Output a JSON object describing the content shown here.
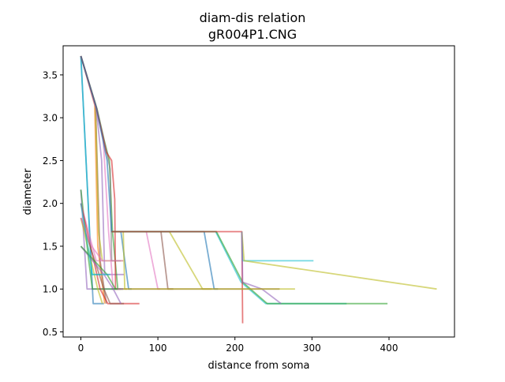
{
  "chart_data": {
    "type": "line",
    "title": "diam-dis relation",
    "subtitle": "gR004P1.CNG",
    "xlabel": "distance from soma",
    "ylabel": "diameter",
    "xlim": [
      -23,
      485
    ],
    "ylim": [
      0.44,
      3.84
    ],
    "xticks": [
      0,
      100,
      200,
      300,
      400
    ],
    "yticks": [
      0.5,
      1.0,
      1.5,
      2.0,
      2.5,
      3.0,
      3.5
    ],
    "ytick_labels": [
      "0.5",
      "1.0",
      "1.5",
      "2.0",
      "2.5",
      "3.0",
      "3.5"
    ],
    "grid": false,
    "series": [
      {
        "color": "#1f77b4",
        "points": [
          [
            0,
            3.72
          ],
          [
            16,
            0.83
          ],
          [
            30,
            0.83
          ]
        ]
      },
      {
        "color": "#17becf",
        "points": [
          [
            0,
            3.72
          ],
          [
            14,
            1.17
          ],
          [
            27,
            1.17
          ]
        ]
      },
      {
        "color": "#ff7f0e",
        "points": [
          [
            0,
            3.72
          ],
          [
            18,
            3.15
          ],
          [
            22,
            1.5
          ],
          [
            31,
            0.83
          ]
        ]
      },
      {
        "color": "#8c564b",
        "points": [
          [
            0,
            3.72
          ],
          [
            19,
            3.15
          ],
          [
            25,
            1.33
          ],
          [
            33,
            0.83
          ]
        ]
      },
      {
        "color": "#bcbd22",
        "points": [
          [
            0,
            3.72
          ],
          [
            19,
            3.15
          ],
          [
            23,
            1.67
          ],
          [
            28,
            1.33
          ],
          [
            55,
            1.33
          ]
        ]
      },
      {
        "color": "#9467bd",
        "points": [
          [
            0,
            3.72
          ],
          [
            20,
            3.1
          ],
          [
            27,
            2.5
          ],
          [
            31,
            1.17
          ],
          [
            56,
            1.17
          ]
        ]
      },
      {
        "color": "#e377c2",
        "points": [
          [
            0,
            3.72
          ],
          [
            20,
            3.1
          ],
          [
            29,
            2.75
          ],
          [
            36,
            1.67
          ],
          [
            42,
            1.0
          ],
          [
            48,
            1.0
          ]
        ]
      },
      {
        "color": "#2ca02c",
        "points": [
          [
            0,
            3.72
          ],
          [
            21,
            3.1
          ],
          [
            30,
            2.75
          ],
          [
            37,
            2.5
          ],
          [
            41,
            1.67
          ],
          [
            48,
            1.0
          ],
          [
            55,
            1.0
          ]
        ]
      },
      {
        "color": "#7f7f7f",
        "points": [
          [
            0,
            3.72
          ],
          [
            21,
            3.1
          ],
          [
            31,
            2.7
          ],
          [
            38,
            2.4
          ],
          [
            40,
            1.33
          ],
          [
            52,
            1.33
          ]
        ]
      },
      {
        "color": "#d62728",
        "points": [
          [
            0,
            3.72
          ],
          [
            20,
            3.12
          ],
          [
            33,
            2.6
          ],
          [
            40,
            2.5
          ],
          [
            44,
            2.05
          ],
          [
            45,
            1.0
          ],
          [
            52,
            1.0
          ]
        ]
      },
      {
        "color": "#1f77b4",
        "points": [
          [
            0,
            3.72
          ],
          [
            20,
            3.12
          ],
          [
            34,
            2.5
          ],
          [
            40,
            1.67
          ],
          [
            52,
            1.67
          ],
          [
            62,
            1.0
          ],
          [
            66,
            1.0
          ]
        ]
      },
      {
        "color": "#bcbd22",
        "points": [
          [
            40,
            1.67
          ],
          [
            55,
            1.67
          ],
          [
            57,
            1.0
          ],
          [
            60,
            1.0
          ]
        ]
      },
      {
        "color": "#e377c2",
        "points": [
          [
            40,
            1.67
          ],
          [
            85,
            1.67
          ],
          [
            100,
            1.0
          ],
          [
            103,
            1.0
          ]
        ]
      },
      {
        "color": "#8c564b",
        "points": [
          [
            40,
            1.67
          ],
          [
            104,
            1.67
          ],
          [
            113,
            1.0
          ],
          [
            120,
            1.0
          ]
        ]
      },
      {
        "color": "#bcbd22",
        "points": [
          [
            40,
            1.67
          ],
          [
            115,
            1.67
          ],
          [
            158,
            1.0
          ],
          [
            170,
            1.0
          ]
        ]
      },
      {
        "color": "#1f77b4",
        "points": [
          [
            40,
            1.67
          ],
          [
            160,
            1.67
          ],
          [
            173,
            1.0
          ],
          [
            178,
            1.0
          ]
        ]
      },
      {
        "color": "#17becf",
        "points": [
          [
            40,
            1.67
          ],
          [
            175,
            1.67
          ],
          [
            208,
            1.08
          ],
          [
            240,
            0.83
          ],
          [
            345,
            0.83
          ]
        ]
      },
      {
        "color": "#2ca02c",
        "points": [
          [
            40,
            1.67
          ],
          [
            176,
            1.67
          ],
          [
            210,
            1.08
          ],
          [
            242,
            0.83
          ],
          [
            398,
            0.83
          ]
        ]
      },
      {
        "color": "#d62728",
        "points": [
          [
            40,
            1.67
          ],
          [
            209,
            1.67
          ],
          [
            210,
            0.6
          ]
        ]
      },
      {
        "color": "#17becf",
        "points": [
          [
            209,
            1.67
          ],
          [
            210,
            1.33
          ],
          [
            302,
            1.33
          ]
        ]
      },
      {
        "color": "#bcbd22",
        "points": [
          [
            209,
            1.67
          ],
          [
            212,
            1.33
          ],
          [
            462,
            1.0
          ]
        ]
      },
      {
        "color": "#9467bd",
        "points": [
          [
            209,
            1.67
          ],
          [
            210,
            1.08
          ],
          [
            235,
            1.0
          ],
          [
            260,
            0.83
          ]
        ]
      },
      {
        "color": "#8c564b",
        "points": [
          [
            40,
            1.0
          ],
          [
            258,
            1.0
          ]
        ]
      },
      {
        "color": "#bcbd22",
        "points": [
          [
            40,
            1.0
          ],
          [
            278,
            1.0
          ]
        ]
      },
      {
        "color": "#9467bd",
        "points": [
          [
            0,
            2.16
          ],
          [
            8,
            1.0
          ],
          [
            55,
            1.0
          ]
        ]
      },
      {
        "color": "#2ca02c",
        "points": [
          [
            0,
            2.16
          ],
          [
            10,
            1.35
          ],
          [
            15,
            1.0
          ],
          [
            48,
            1.0
          ]
        ]
      },
      {
        "color": "#e377c2",
        "points": [
          [
            0,
            2.0
          ],
          [
            20,
            1.33
          ],
          [
            55,
            1.33
          ]
        ]
      },
      {
        "color": "#d62728",
        "points": [
          [
            0,
            2.0
          ],
          [
            25,
            1.0
          ],
          [
            35,
            0.83
          ],
          [
            76,
            0.83
          ]
        ]
      },
      {
        "color": "#8c564b",
        "points": [
          [
            0,
            1.83
          ],
          [
            30,
            1.0
          ],
          [
            38,
            0.83
          ],
          [
            56,
            0.83
          ]
        ]
      },
      {
        "color": "#bcbd22",
        "points": [
          [
            0,
            1.83
          ],
          [
            22,
            1.0
          ],
          [
            28,
            0.83
          ]
        ]
      },
      {
        "color": "#9467bd",
        "points": [
          [
            0,
            1.5
          ],
          [
            30,
            1.17
          ],
          [
            42,
            1.0
          ],
          [
            52,
            0.83
          ]
        ]
      },
      {
        "color": "#2ca02c",
        "points": [
          [
            0,
            1.5
          ],
          [
            34,
            1.17
          ],
          [
            45,
            1.0
          ]
        ]
      },
      {
        "color": "#e377c2",
        "points": [
          [
            0,
            1.83
          ],
          [
            14,
            1.5
          ],
          [
            28,
            1.33
          ]
        ]
      },
      {
        "color": "#17becf",
        "points": [
          [
            0,
            2.0
          ],
          [
            15,
            1.17
          ],
          [
            38,
            1.17
          ]
        ]
      }
    ]
  }
}
